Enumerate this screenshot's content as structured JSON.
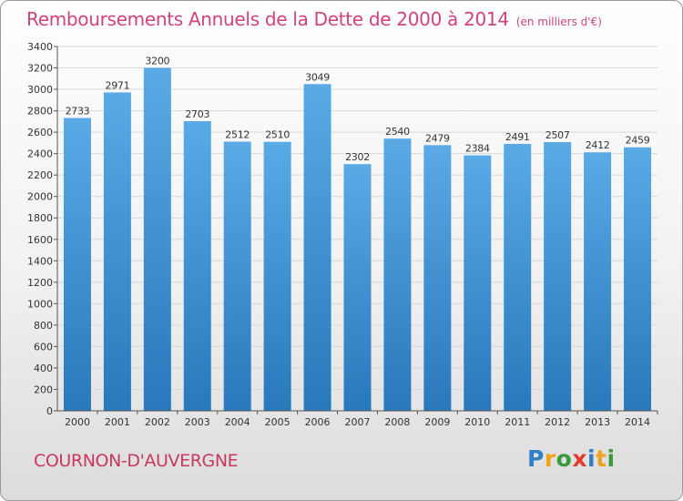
{
  "title": "Remboursements Annuels de la Dette de 2000 à 2014",
  "unit": "(en milliers d'€)",
  "commune": "COURNON-D'AUVERGNE",
  "logo": {
    "letters": [
      "P",
      "r",
      "o",
      "x",
      "i",
      "t",
      "i"
    ],
    "colors": [
      "#2f7fc4",
      "#f0a21e",
      "#3a9a3a",
      "#e23a2c",
      "#2f7fc4",
      "#f0a21e",
      "#3a9a3a"
    ]
  },
  "colors": {
    "bar_light": "#5aaae6",
    "bar_dark": "#2878bc",
    "title": "#d0427e",
    "grid": "#d8d8d8"
  },
  "chart_data": {
    "type": "bar",
    "title": "Remboursements Annuels de la Dette de 2000 à 2014",
    "categories": [
      "2000",
      "2001",
      "2002",
      "2003",
      "2004",
      "2005",
      "2006",
      "2007",
      "2008",
      "2009",
      "2010",
      "2011",
      "2012",
      "2013",
      "2014"
    ],
    "values": [
      2733,
      2971,
      3200,
      2703,
      2512,
      2510,
      3049,
      2302,
      2540,
      2479,
      2384,
      2491,
      2507,
      2412,
      2459
    ],
    "ylim": [
      0,
      3400
    ],
    "yticks": [
      0,
      200,
      400,
      600,
      800,
      1000,
      1200,
      1400,
      1600,
      1800,
      2000,
      2200,
      2400,
      2600,
      2800,
      3000,
      3200,
      3400
    ],
    "grid": true,
    "xlabel": "",
    "ylabel": ""
  }
}
